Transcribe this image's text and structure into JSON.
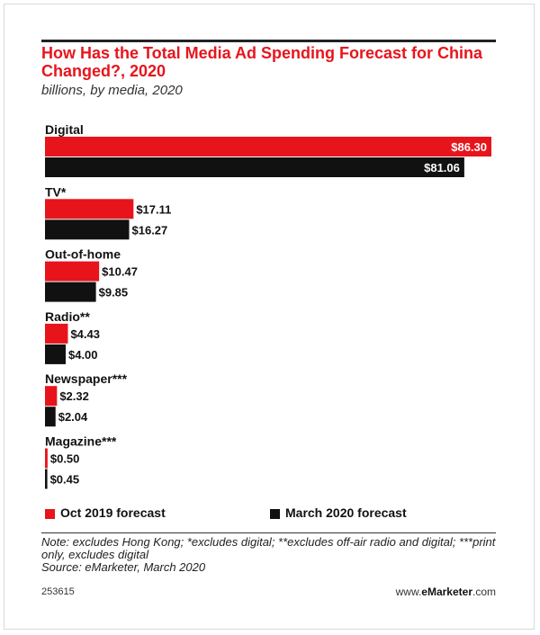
{
  "header": {
    "title": "How Has the Total Media Ad Spending Forecast for China Changed?, 2020",
    "subtitle": "billions, by media, 2020"
  },
  "colors": {
    "oct_2019": "#e8141c",
    "march_2020": "#111111"
  },
  "chart_data": {
    "type": "bar",
    "orientation": "horizontal",
    "title": "How Has the Total Media Ad Spending Forecast for China Changed?, 2020",
    "subtitle": "billions, by media, 2020",
    "categories": [
      "Digital",
      "TV*",
      "Out-of-home",
      "Radio**",
      "Newspaper***",
      "Magazine***"
    ],
    "series": [
      {
        "name": "Oct 2019 forecast",
        "color": "#e8141c",
        "values": [
          86.3,
          17.11,
          10.47,
          4.43,
          2.32,
          0.5
        ]
      },
      {
        "name": "March 2020 forecast",
        "color": "#111111",
        "values": [
          81.06,
          16.27,
          9.85,
          4.0,
          2.04,
          0.45
        ]
      }
    ],
    "value_labels": [
      [
        "$86.30",
        "$17.11",
        "$10.47",
        "$4.43",
        "$2.32",
        "$0.50"
      ],
      [
        "$81.06",
        "$16.27",
        "$9.85",
        "$4.00",
        "$2.04",
        "$0.45"
      ]
    ],
    "legend_position": "bottom",
    "grid": false
  },
  "footer": {
    "note": "Note: excludes Hong Kong; *excludes digital; **excludes off-air radio and digital; ***print only, excludes digital",
    "source": "Source: eMarketer, March 2020",
    "chart_id": "253615",
    "brand_prefix": "www.",
    "brand_name": "eMarketer",
    "brand_suffix": ".com"
  }
}
